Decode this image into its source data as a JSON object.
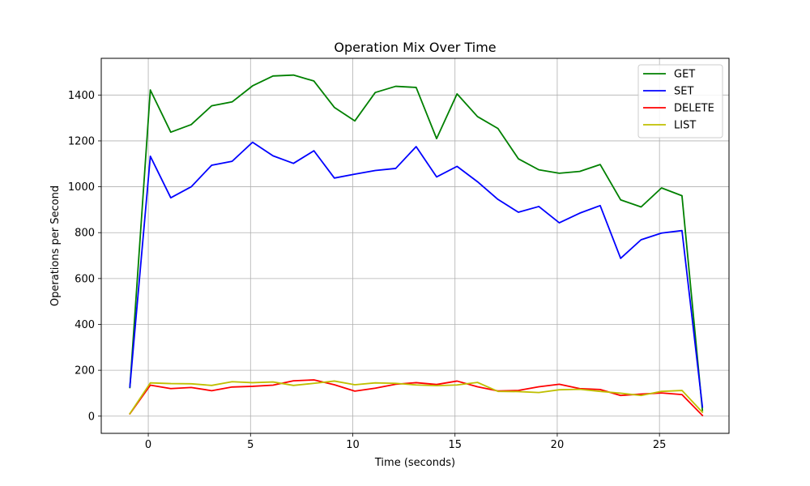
{
  "chart_data": {
    "type": "line",
    "title": "Operation Mix Over Time",
    "xlabel": "Time (seconds)",
    "ylabel": "Operations per Second",
    "xlim": [
      -2.3,
      28.4
    ],
    "ylim": [
      -75,
      1560
    ],
    "xticks": [
      0,
      5,
      10,
      15,
      20,
      25
    ],
    "yticks": [
      0,
      200,
      400,
      600,
      800,
      1000,
      1200,
      1400
    ],
    "grid": true,
    "legend_position": "top-right",
    "x": [
      -0.9,
      0.1,
      1.1,
      2.1,
      3.1,
      4.1,
      5.1,
      6.1,
      7.1,
      8.1,
      9.1,
      10.1,
      11.1,
      12.1,
      13.1,
      14.1,
      15.1,
      16.1,
      17.1,
      18.1,
      19.1,
      20.1,
      21.1,
      22.1,
      23.1,
      24.1,
      25.1,
      26.1,
      27.1
    ],
    "series": [
      {
        "name": "GET",
        "color": "#008000",
        "values": [
          125,
          1422,
          1238,
          1271,
          1353,
          1370,
          1440,
          1483,
          1487,
          1461,
          1346,
          1287,
          1411,
          1438,
          1433,
          1210,
          1405,
          1306,
          1254,
          1122,
          1074,
          1059,
          1067,
          1097,
          943,
          912,
          995,
          961,
          25
        ]
      },
      {
        "name": "SET",
        "color": "#0000ff",
        "values": [
          128,
          1133,
          952,
          1000,
          1094,
          1111,
          1194,
          1135,
          1102,
          1157,
          1038,
          1055,
          1071,
          1080,
          1175,
          1043,
          1089,
          1022,
          945,
          889,
          914,
          843,
          885,
          918,
          688,
          769,
          798,
          809,
          40
        ]
      },
      {
        "name": "DELETE",
        "color": "#ff0000",
        "values": [
          10,
          135,
          120,
          125,
          111,
          127,
          130,
          135,
          154,
          158,
          137,
          109,
          122,
          139,
          146,
          138,
          153,
          128,
          110,
          112,
          128,
          139,
          120,
          116,
          90,
          96,
          101,
          94,
          3
        ]
      },
      {
        "name": "LIST",
        "color": "#bfbf00",
        "values": [
          11,
          145,
          142,
          141,
          134,
          150,
          146,
          149,
          134,
          143,
          153,
          137,
          145,
          143,
          136,
          133,
          136,
          147,
          108,
          107,
          103,
          115,
          117,
          108,
          100,
          90,
          108,
          112,
          17
        ]
      }
    ]
  }
}
